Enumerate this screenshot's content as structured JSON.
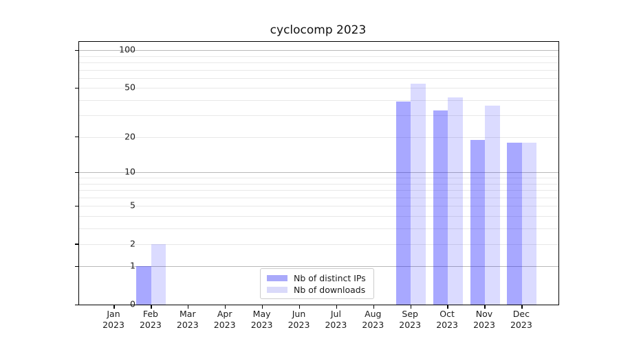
{
  "title": "cyclocomp 2023",
  "chart_data": {
    "type": "bar",
    "x_months": [
      "Jan",
      "Feb",
      "Mar",
      "Apr",
      "May",
      "Jun",
      "Jul",
      "Aug",
      "Sep",
      "Oct",
      "Nov",
      "Dec"
    ],
    "x_year": "2023",
    "series": [
      {
        "name": "Nb of distinct IPs",
        "color": "rgba(0,0,255,0.34)",
        "color_hex": "#a9a9fa",
        "values": [
          0,
          1,
          0,
          0,
          0,
          0,
          0,
          0,
          39,
          33,
          19,
          18
        ]
      },
      {
        "name": "Nb of downloads",
        "color": "rgba(0,0,255,0.14)",
        "color_hex": "#dadafa",
        "values": [
          0,
          2,
          0,
          0,
          0,
          0,
          0,
          0,
          54,
          42,
          36,
          18
        ]
      }
    ],
    "yscale": "log10(value+1)",
    "ytick_labels": [
      "0",
      "1",
      "2",
      "5",
      "10",
      "20",
      "50",
      "100"
    ],
    "ytick_values": [
      0,
      1,
      2,
      5,
      10,
      20,
      50,
      100
    ],
    "ylim": [
      0,
      117
    ],
    "grid": "horizontal",
    "legend_position": "bottom-center-inside"
  }
}
